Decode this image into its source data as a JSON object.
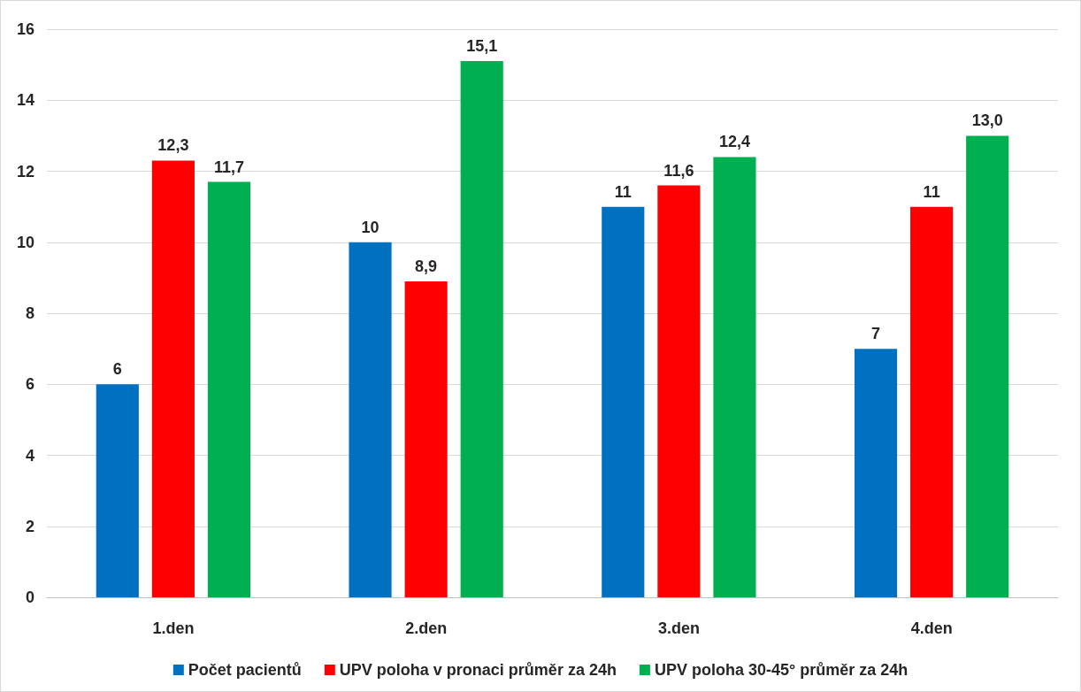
{
  "chart_data": {
    "type": "bar",
    "categories": [
      "1.den",
      "2.den",
      "3.den",
      "4.den"
    ],
    "series": [
      {
        "name": "Počet pacientů",
        "color": "#0070c0",
        "values": [
          6,
          10,
          11,
          7
        ],
        "value_labels": [
          "6",
          "10",
          "11",
          "7"
        ]
      },
      {
        "name": "UPV poloha v pronaci průměr za 24h",
        "color": "#ff0000",
        "values": [
          12.3,
          8.9,
          11.6,
          11
        ],
        "value_labels": [
          "12,3",
          "8,9",
          "11,6",
          "11"
        ]
      },
      {
        "name": "UPV poloha 30-45° průměr za 24h",
        "color": "#00b050",
        "values": [
          11.7,
          15.1,
          12.4,
          13.0
        ],
        "value_labels": [
          "11,7",
          "15,1",
          "12,4",
          "13,0"
        ]
      }
    ],
    "ylim": [
      0,
      16
    ],
    "yticks": [
      0,
      2,
      4,
      6,
      8,
      10,
      12,
      14,
      16
    ],
    "grid": "y",
    "legend": "bottom"
  }
}
